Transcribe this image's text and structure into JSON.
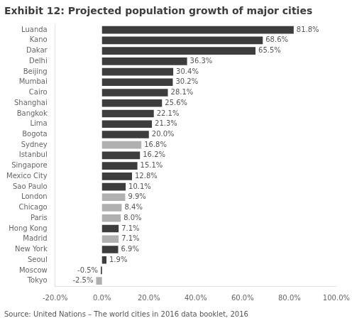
{
  "chart_data": {
    "type": "bar",
    "orientation": "horizontal",
    "title": "Exhibit 12: Projected population growth of major cities",
    "annotations": [
      "Source: United Nations – The world cities in 2016 data booklet, 2016"
    ],
    "categories": [
      "Luanda",
      "Kano",
      "Dakar",
      "Delhi",
      "Beijing",
      "Mumbai",
      "Cairo",
      "Shanghai",
      "Bangkok",
      "Lima",
      "Bogota",
      "Sydney",
      "Istanbul",
      "Singapore",
      "Mexico City",
      "Sao Paulo",
      "London",
      "Chicago",
      "Paris",
      "Hong Kong",
      "Madrid",
      "New York",
      "Seoul",
      "Moscow",
      "Tokyo"
    ],
    "values": [
      81.8,
      68.6,
      65.5,
      36.3,
      30.4,
      30.2,
      28.1,
      25.6,
      22.1,
      21.3,
      20.0,
      16.8,
      16.2,
      15.1,
      12.8,
      10.1,
      9.9,
      8.4,
      8.0,
      7.1,
      7.1,
      6.9,
      1.9,
      -0.5,
      -2.5
    ],
    "value_labels": [
      "81.8%",
      "68.6%",
      "65.5%",
      "36.3%",
      "30.4%",
      "30.2%",
      "28.1%",
      "25.6%",
      "22.1%",
      "21.3%",
      "20.0%",
      "16.8%",
      "16.2%",
      "15.1%",
      "12.8%",
      "10.1%",
      "9.9%",
      "8.4%",
      "8.0%",
      "7.1%",
      "7.1%",
      "6.9%",
      "1.9%",
      "-0.5%",
      "-2.5%"
    ],
    "data_labels": true,
    "colors": [
      "#3d3d3d",
      "#3d3d3d",
      "#3d3d3d",
      "#3d3d3d",
      "#3d3d3d",
      "#3d3d3d",
      "#3d3d3d",
      "#3d3d3d",
      "#3d3d3d",
      "#3d3d3d",
      "#3d3d3d",
      "#b0b0b0",
      "#3d3d3d",
      "#3d3d3d",
      "#3d3d3d",
      "#3d3d3d",
      "#b0b0b0",
      "#b0b0b0",
      "#b0b0b0",
      "#3d3d3d",
      "#b0b0b0",
      "#3d3d3d",
      "#3d3d3d",
      "#3d3d3d",
      "#b0b0b0"
    ],
    "xlim": [
      -20,
      100
    ],
    "xticks": [
      {
        "value": -20,
        "label": "-20.0%"
      },
      {
        "value": 0,
        "label": "0.0%"
      },
      {
        "value": 20,
        "label": "20.0%"
      },
      {
        "value": 40,
        "label": "40.0%"
      },
      {
        "value": 60,
        "label": "60.0%"
      },
      {
        "value": 80,
        "label": "80.0%"
      },
      {
        "value": 100,
        "label": "100.0%"
      }
    ],
    "grid": false
  }
}
